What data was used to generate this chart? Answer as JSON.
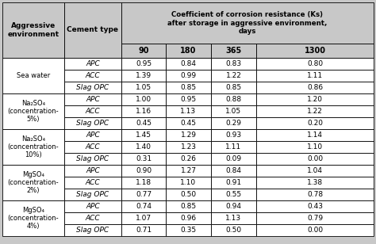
{
  "header_top": "Coefficient of corrosion resistance (Ks)\nafter storage in aggressive environment,\ndays",
  "days": [
    "90",
    "180",
    "365",
    "1300"
  ],
  "rows": [
    [
      "Sea water",
      "APC",
      "0.95",
      "0.84",
      "0.83",
      "0.80"
    ],
    [
      "Sea water",
      "ACC",
      "1.39",
      "0.99",
      "1.22",
      "1.11"
    ],
    [
      "Sea water",
      "Slag OPC",
      "1.05",
      "0.85",
      "0.85",
      "0.86"
    ],
    [
      "Na₂SO₄\n(concentration-\n5%)",
      "APC",
      "1.00",
      "0.95",
      "0.88",
      "1.20"
    ],
    [
      "Na₂SO₄\n(concentration-\n5%)",
      "ACC",
      "1.16",
      "1.13",
      "1.05",
      "1.22"
    ],
    [
      "Na₂SO₄\n(concentration-\n5%)",
      "Slag OPC",
      "0.45",
      "0.45",
      "0.29",
      "0.20"
    ],
    [
      "Na₂SO₄\n(concentration-\n10%)",
      "APC",
      "1.45",
      "1.29",
      "0.93",
      "1.14"
    ],
    [
      "Na₂SO₄\n(concentration-\n10%)",
      "ACC",
      "1.40",
      "1.23",
      "1.11",
      "1.10"
    ],
    [
      "Na₂SO₄\n(concentration-\n10%)",
      "Slag OPC",
      "0.31",
      "0.26",
      "0.09",
      "0.00"
    ],
    [
      "MgSO₄\n(concentration-\n2%)",
      "APC",
      "0.90",
      "1.27",
      "0.84",
      "1.04"
    ],
    [
      "MgSO₄\n(concentration-\n2%)",
      "ACC",
      "1.18",
      "1.10",
      "0.91",
      "1.38"
    ],
    [
      "MgSO₄\n(concentration-\n2%)",
      "Slag OPC",
      "0.77",
      "0.50",
      "0.55",
      "0.78"
    ],
    [
      "MgSO₄\n(concentration-\n4%)",
      "APC",
      "0.74",
      "0.85",
      "0.94",
      "0.43"
    ],
    [
      "MgSO₄\n(concentration-\n4%)",
      "ACC",
      "1.07",
      "0.96",
      "1.13",
      "0.79"
    ],
    [
      "MgSO₄\n(concentration-\n4%)",
      "Slag OPC",
      "0.71",
      "0.35",
      "0.50",
      "0.00"
    ]
  ],
  "groups": [
    [
      0,
      3,
      "Sea water"
    ],
    [
      3,
      3,
      "Na₂SO₄\n(concentration-\n5%)"
    ],
    [
      6,
      3,
      "Na₂SO₄\n(concentration-\n10%)"
    ],
    [
      9,
      3,
      "MgSO₄\n(concentration-\n2%)"
    ],
    [
      12,
      3,
      "MgSO₄\n(concentration-\n4%)"
    ]
  ],
  "bg_color": "#c8c8c8",
  "cell_bg": "#ffffff",
  "header_bg": "#c8c8c8"
}
